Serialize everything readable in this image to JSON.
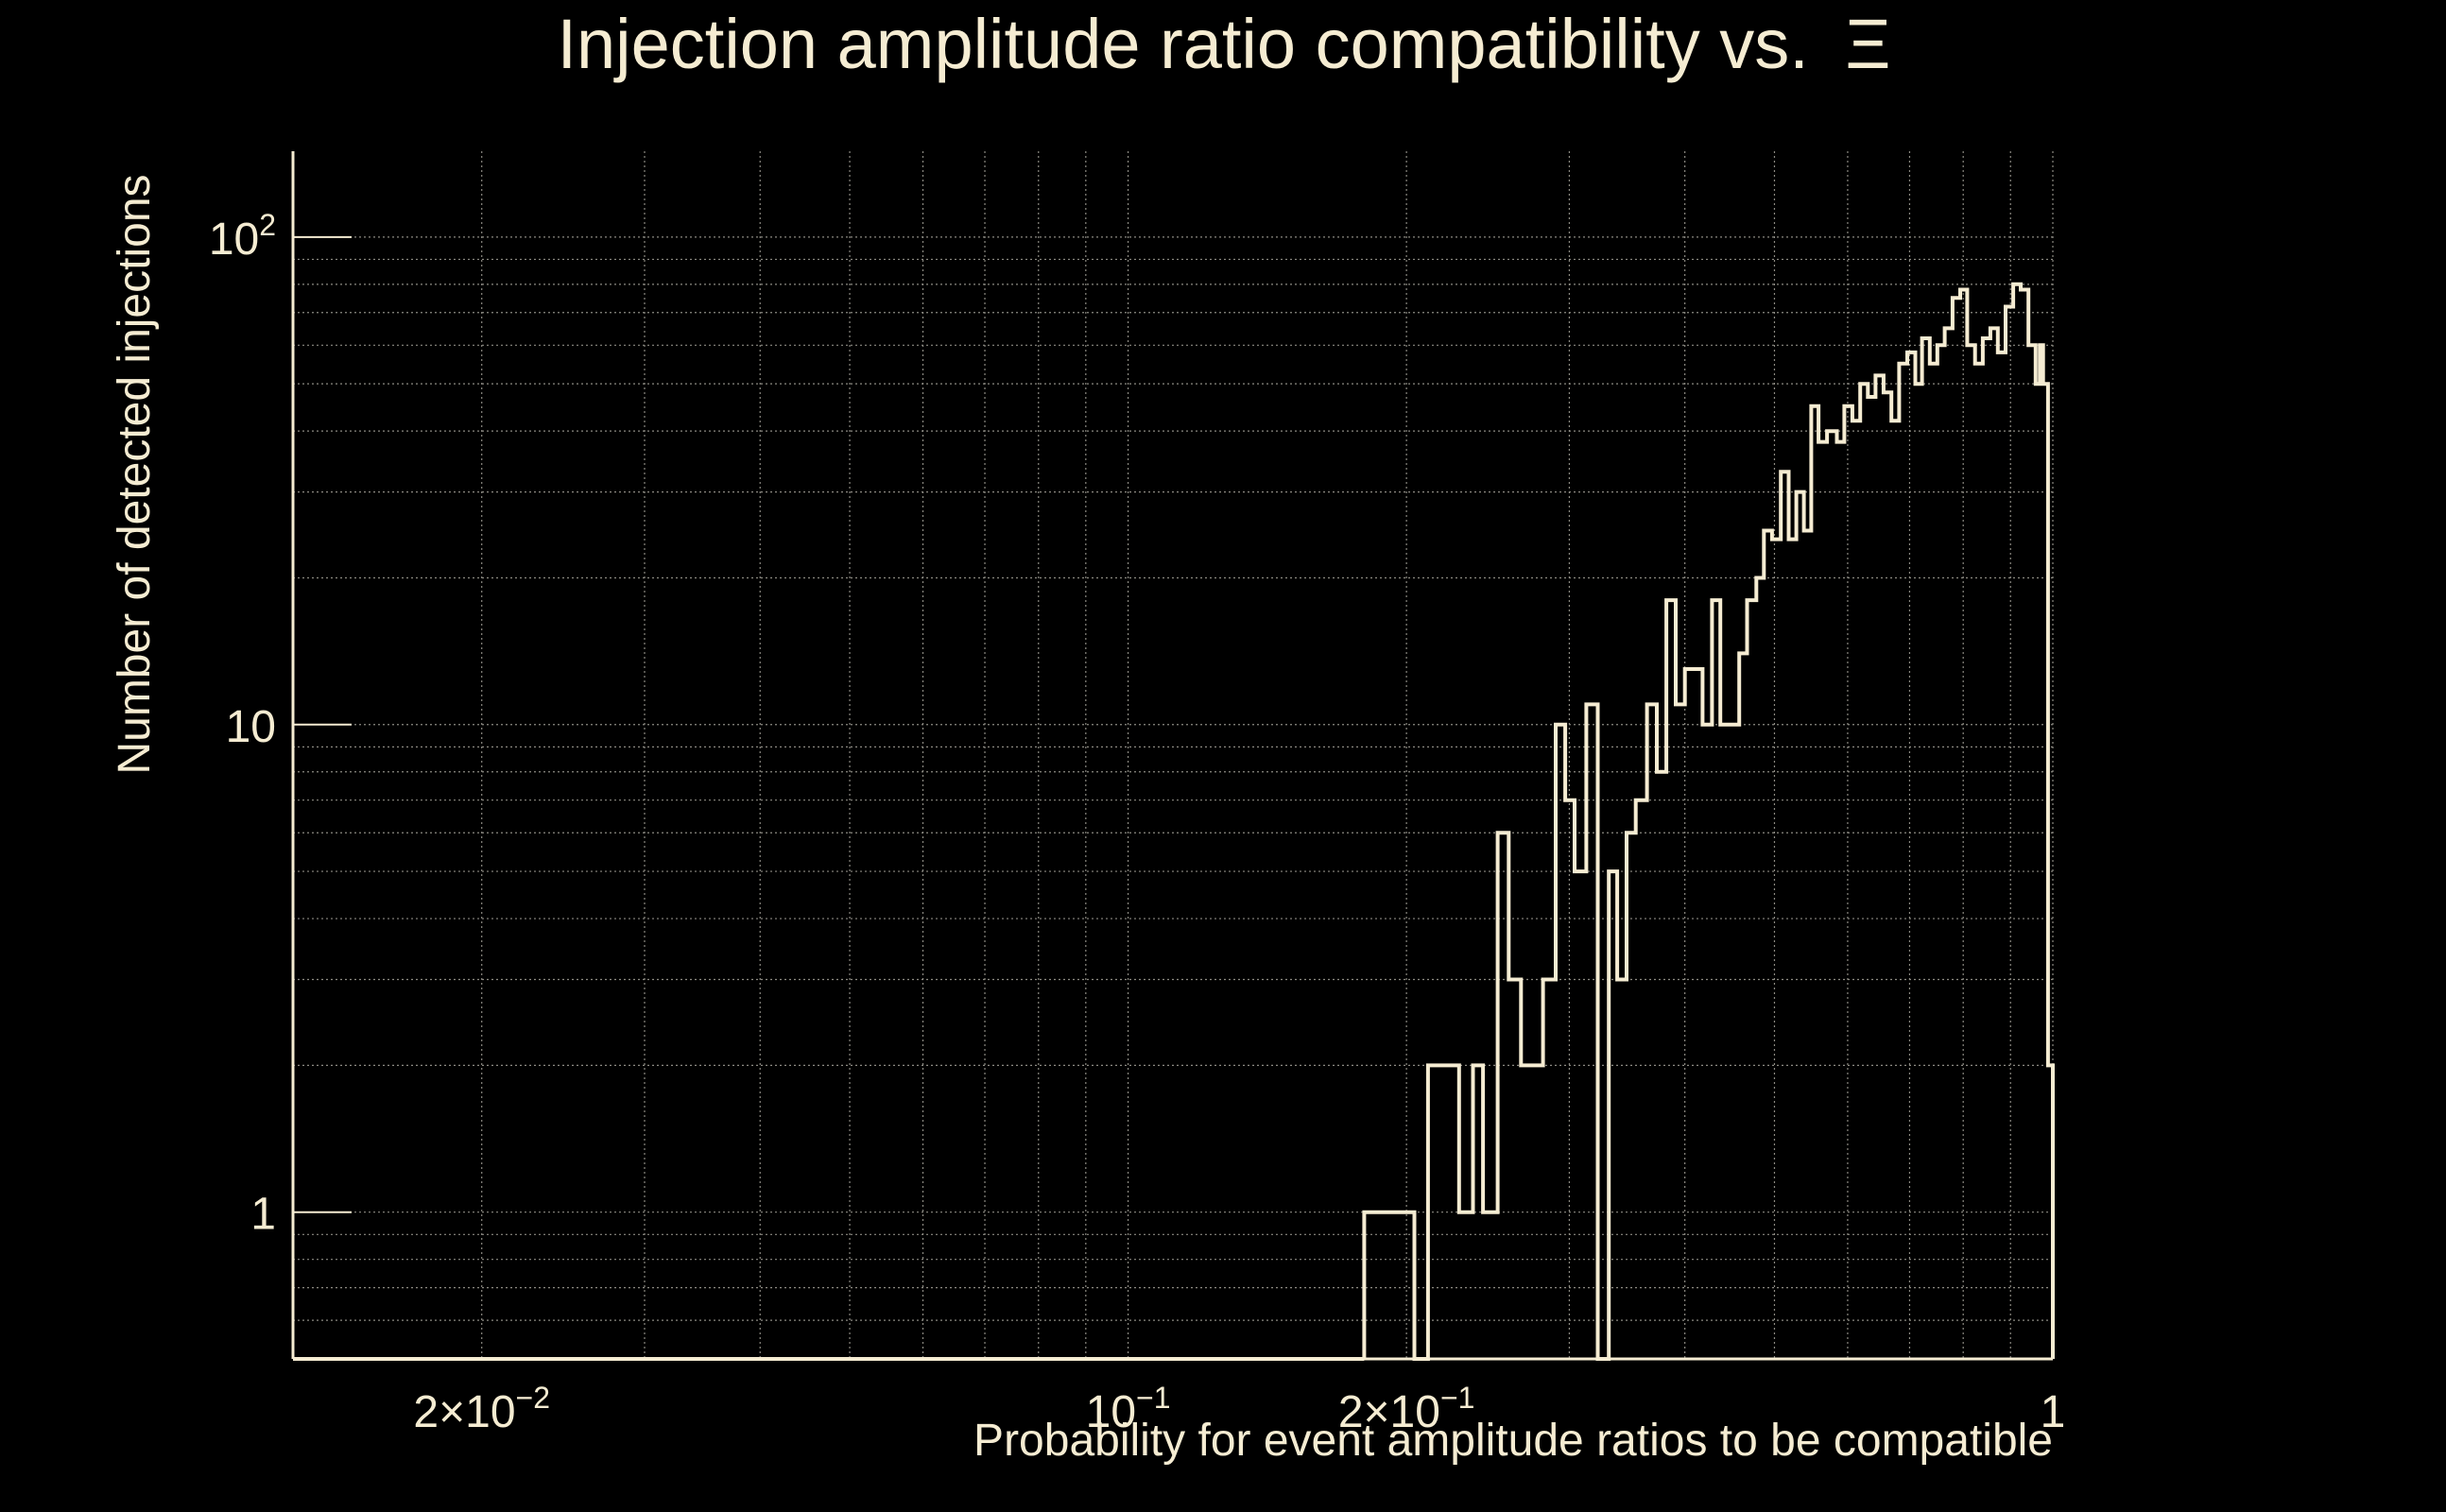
{
  "chart_data": {
    "type": "bar",
    "title": "Injection amplitude ratio compatibility vs.",
    "title_symbol": "Ξ",
    "xlabel": "Probability for event amplitude ratios to be compatible",
    "ylabel": "Number of detected injections",
    "x_scale": "log",
    "y_scale": "log",
    "xlim": [
      0.0125,
      1.0
    ],
    "ylim": [
      0.5,
      150
    ],
    "grid": true,
    "x_ticks": [
      {
        "value": 0.02,
        "base": "2×10",
        "exp": "−2"
      },
      {
        "value": 0.1,
        "base": "10",
        "exp": "−1"
      },
      {
        "value": 0.2,
        "base": "2×10",
        "exp": "−1"
      },
      {
        "value": 1,
        "base": "1",
        "exp": ""
      }
    ],
    "y_ticks": [
      {
        "value": 1,
        "base": "1",
        "exp": ""
      },
      {
        "value": 10,
        "base": "10",
        "exp": ""
      },
      {
        "value": 100,
        "base": "10",
        "exp": "2"
      }
    ],
    "series": [
      {
        "bins": [
          [
            0.18,
            0.204,
            1
          ],
          [
            0.204,
            0.211,
            0.5
          ],
          [
            0.211,
            0.228,
            2
          ],
          [
            0.228,
            0.236,
            1
          ],
          [
            0.236,
            0.242,
            2
          ],
          [
            0.242,
            0.251,
            1
          ],
          [
            0.251,
            0.258,
            6
          ],
          [
            0.258,
            0.266,
            3
          ],
          [
            0.266,
            0.281,
            2
          ],
          [
            0.281,
            0.29,
            3
          ],
          [
            0.29,
            0.297,
            10
          ],
          [
            0.297,
            0.304,
            7
          ],
          [
            0.304,
            0.313,
            5
          ],
          [
            0.313,
            0.322,
            11
          ],
          [
            0.322,
            0.331,
            0.5
          ],
          [
            0.331,
            0.338,
            5
          ],
          [
            0.338,
            0.346,
            3
          ],
          [
            0.346,
            0.354,
            6
          ],
          [
            0.354,
            0.364,
            7
          ],
          [
            0.364,
            0.373,
            11
          ],
          [
            0.373,
            0.382,
            8
          ],
          [
            0.382,
            0.391,
            18
          ],
          [
            0.391,
            0.4,
            11
          ],
          [
            0.4,
            0.418,
            13
          ],
          [
            0.418,
            0.428,
            10
          ],
          [
            0.428,
            0.437,
            18
          ],
          [
            0.437,
            0.458,
            10
          ],
          [
            0.458,
            0.467,
            14
          ],
          [
            0.467,
            0.478,
            18
          ],
          [
            0.478,
            0.487,
            20
          ],
          [
            0.487,
            0.497,
            25
          ],
          [
            0.497,
            0.508,
            24
          ],
          [
            0.508,
            0.518,
            33
          ],
          [
            0.518,
            0.528,
            24
          ],
          [
            0.528,
            0.538,
            30
          ],
          [
            0.538,
            0.548,
            25
          ],
          [
            0.548,
            0.558,
            45
          ],
          [
            0.558,
            0.57,
            38
          ],
          [
            0.57,
            0.584,
            40
          ],
          [
            0.584,
            0.595,
            38
          ],
          [
            0.595,
            0.607,
            45
          ],
          [
            0.607,
            0.619,
            42
          ],
          [
            0.619,
            0.631,
            50
          ],
          [
            0.631,
            0.643,
            47
          ],
          [
            0.643,
            0.656,
            52
          ],
          [
            0.656,
            0.669,
            48
          ],
          [
            0.669,
            0.682,
            42
          ],
          [
            0.682,
            0.696,
            55
          ],
          [
            0.696,
            0.71,
            58
          ],
          [
            0.71,
            0.722,
            50
          ],
          [
            0.722,
            0.736,
            62
          ],
          [
            0.736,
            0.75,
            55
          ],
          [
            0.75,
            0.764,
            60
          ],
          [
            0.764,
            0.779,
            65
          ],
          [
            0.779,
            0.794,
            75
          ],
          [
            0.794,
            0.808,
            78
          ],
          [
            0.808,
            0.824,
            60
          ],
          [
            0.824,
            0.84,
            55
          ],
          [
            0.84,
            0.856,
            62
          ],
          [
            0.856,
            0.872,
            65
          ],
          [
            0.872,
            0.889,
            58
          ],
          [
            0.889,
            0.906,
            72
          ],
          [
            0.906,
            0.923,
            80
          ],
          [
            0.923,
            0.941,
            78
          ],
          [
            0.941,
            0.958,
            60
          ],
          [
            0.958,
            0.968,
            50
          ],
          [
            0.968,
            0.976,
            60
          ],
          [
            0.976,
            0.988,
            50
          ],
          [
            0.988,
            1.0,
            2
          ]
        ]
      }
    ]
  }
}
